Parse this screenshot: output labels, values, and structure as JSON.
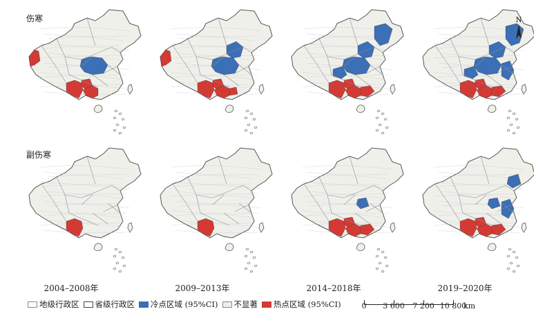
{
  "rows": [
    {
      "label": "伤寒",
      "maps": [
        {
          "period": "2004–2008年",
          "hot": [
            "tibet-w",
            "yunnan",
            "guizhou",
            "guangxi"
          ],
          "cold": [
            "central"
          ]
        },
        {
          "period": "2009–2013年",
          "hot": [
            "tibet-w",
            "yunnan",
            "guizhou",
            "guangxi",
            "guangdong-w"
          ],
          "cold": [
            "central",
            "north"
          ]
        },
        {
          "period": "2014–2018年",
          "hot": [
            "yunnan",
            "guizhou",
            "guangxi",
            "guangdong"
          ],
          "cold": [
            "central",
            "north",
            "northeast",
            "sichuan"
          ]
        },
        {
          "period": "2019–2020年",
          "hot": [
            "yunnan",
            "guizhou",
            "guangxi",
            "guangdong"
          ],
          "cold": [
            "central",
            "north",
            "northeast",
            "sichuan",
            "east"
          ]
        }
      ]
    },
    {
      "label": "副伤寒",
      "maps": [
        {
          "period": "2004–2008年",
          "hot": [
            "yunnan"
          ],
          "cold": []
        },
        {
          "period": "2009–2013年",
          "hot": [
            "yunnan"
          ],
          "cold": []
        },
        {
          "period": "2014–2018年",
          "hot": [
            "yunnan",
            "guizhou",
            "guangxi",
            "guangdong"
          ],
          "cold": [
            "henan"
          ]
        },
        {
          "period": "2019–2020年",
          "hot": [
            "yunnan",
            "guizhou",
            "guangxi",
            "guangdong"
          ],
          "cold": [
            "henan",
            "east",
            "northeast-s"
          ]
        }
      ]
    }
  ],
  "periods": [
    "2004–2008年",
    "2009–2013年",
    "2014–2018年",
    "2019–2020年"
  ],
  "north_label": "N",
  "legend": [
    {
      "label": "地级行政区",
      "color": "#ffffff"
    },
    {
      "label": "省级行政区",
      "color": "#ffffff"
    },
    {
      "label": "冷点区域 (95%CI)",
      "color": "#3b6fb6"
    },
    {
      "label": "不显著",
      "color": "#f0f0ea"
    },
    {
      "label": "热点区域 (95%CI)",
      "color": "#d43a34"
    }
  ],
  "scale": {
    "labels": [
      "0",
      "3 600",
      "7 200",
      "10 800"
    ],
    "unit": "km"
  },
  "colors": {
    "hot": "#d43a34",
    "cold": "#3b6fb6",
    "neutral": "#f0f0ea",
    "border": "#8a8f9a"
  }
}
